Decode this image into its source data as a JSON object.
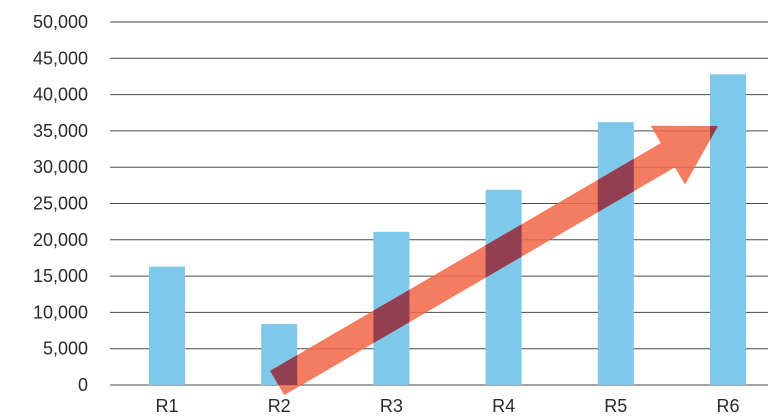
{
  "colors": {
    "bar": "#7ec8ea",
    "bar_edge": "#6bbbe2",
    "gridline": "#4a4a4a",
    "arrow": "#f26a4b",
    "overlap": "#8a3a50"
  },
  "chart_data": {
    "type": "bar",
    "title": "",
    "xlabel": "",
    "ylabel": "",
    "categories": [
      "R1",
      "R2",
      "R3",
      "R4",
      "R5",
      "R6"
    ],
    "values": [
      16300,
      8400,
      21100,
      26900,
      36200,
      42800
    ],
    "ylim": [
      0,
      50000
    ],
    "ytick_values": [
      0,
      5000,
      10000,
      15000,
      20000,
      25000,
      30000,
      35000,
      40000,
      45000,
      50000
    ],
    "ytick_labels": [
      "0",
      "5,000",
      "10,000",
      "15,000",
      "20,000",
      "25,000",
      "30,000",
      "35,000",
      "40,000",
      "45,000",
      "50,000"
    ],
    "grid": true,
    "legend": "none",
    "annotations": [
      {
        "type": "trend-arrow",
        "from": {
          "category": "R2",
          "value": 0
        },
        "to": {
          "category": "R6",
          "value": 36500
        }
      }
    ]
  }
}
